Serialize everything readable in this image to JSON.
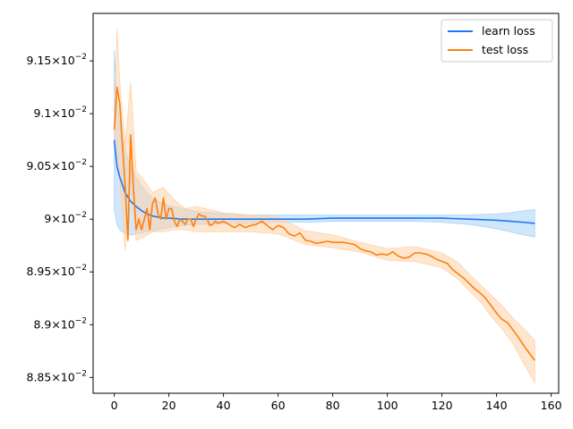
{
  "chart_data": {
    "type": "line",
    "title": "",
    "xlabel": "",
    "ylabel": "",
    "xlim": [
      -7.75,
      162.75
    ],
    "ylim": [
      0.08835,
      0.09195
    ],
    "xticks": [
      0,
      20,
      40,
      60,
      80,
      100,
      120,
      140,
      160
    ],
    "xtick_labels": [
      "0",
      "20",
      "40",
      "60",
      "80",
      "100",
      "120",
      "140",
      "160"
    ],
    "yticks": [
      0.0885,
      0.089,
      0.0895,
      0.09,
      0.0905,
      0.091,
      0.0915
    ],
    "ytick_labels": [
      {
        "mantissa": "8.85",
        "times": "×",
        "base": "10",
        "exp": "−2"
      },
      {
        "mantissa": "8.9",
        "times": "×",
        "base": "10",
        "exp": "−2"
      },
      {
        "mantissa": "8.95",
        "times": "×",
        "base": "10",
        "exp": "−2"
      },
      {
        "mantissa": "9",
        "times": "×",
        "base": "10",
        "exp": "−2"
      },
      {
        "mantissa": "9.05",
        "times": "×",
        "base": "10",
        "exp": "−2"
      },
      {
        "mantissa": "9.1",
        "times": "×",
        "base": "10",
        "exp": "−2"
      },
      {
        "mantissa": "9.15",
        "times": "×",
        "base": "10",
        "exp": "−2"
      }
    ],
    "grid": false,
    "legend_position": "top-right",
    "series": [
      {
        "name": "learn loss",
        "color": "#1f77f0",
        "band_color": "#a9d2f7",
        "x": [
          0,
          1,
          2,
          4,
          6,
          8,
          10,
          12,
          14,
          16,
          18,
          20,
          25,
          30,
          40,
          50,
          60,
          70,
          80,
          90,
          100,
          110,
          120,
          130,
          140,
          145,
          150,
          154
        ],
        "y": [
          0.09075,
          0.0905,
          0.0904,
          0.09025,
          0.09017,
          0.09012,
          0.09008,
          0.09005,
          0.09003,
          0.09002,
          0.09001,
          0.09001,
          0.09,
          0.09,
          0.09,
          0.09,
          0.09,
          0.09,
          0.09001,
          0.09001,
          0.09001,
          0.09001,
          0.09001,
          0.09,
          0.08999,
          0.08998,
          0.08997,
          0.08996
        ],
        "lower": [
          0.0901,
          0.08995,
          0.0899,
          0.08986,
          0.08985,
          0.08986,
          0.08987,
          0.08988,
          0.08989,
          0.0899,
          0.08991,
          0.08992,
          0.08994,
          0.08995,
          0.08996,
          0.08996,
          0.08997,
          0.08997,
          0.08998,
          0.08998,
          0.08998,
          0.08998,
          0.08997,
          0.08995,
          0.08991,
          0.08988,
          0.08985,
          0.08983
        ],
        "upper": [
          0.0916,
          0.0911,
          0.0909,
          0.09065,
          0.0905,
          0.0904,
          0.09032,
          0.09025,
          0.0902,
          0.09017,
          0.09015,
          0.09013,
          0.0901,
          0.09007,
          0.09005,
          0.09004,
          0.09004,
          0.09004,
          0.09004,
          0.09004,
          0.09004,
          0.09004,
          0.09004,
          0.09004,
          0.09005,
          0.09006,
          0.09008,
          0.09009
        ]
      },
      {
        "name": "test loss",
        "color": "#ff7f0e",
        "band_color": "#ffd2a8",
        "x": [
          0,
          1,
          2,
          3,
          4,
          5,
          6,
          7,
          8,
          9,
          10,
          11,
          12,
          13,
          14,
          15,
          16,
          17,
          18,
          19,
          20,
          21,
          22,
          23,
          24,
          25,
          26,
          27,
          28,
          29,
          30,
          31,
          32,
          33,
          34,
          35,
          36,
          37,
          38,
          40,
          42,
          44,
          46,
          48,
          50,
          52,
          54,
          56,
          58,
          60,
          62,
          64,
          66,
          68,
          70,
          72,
          74,
          76,
          78,
          80,
          82,
          84,
          86,
          88,
          90,
          92,
          94,
          96,
          98,
          100,
          102,
          104,
          106,
          108,
          110,
          112,
          114,
          116,
          118,
          120,
          122,
          124,
          126,
          128,
          130,
          132,
          134,
          136,
          138,
          140,
          142,
          144,
          146,
          148,
          150,
          152,
          154
        ],
        "y": [
          0.09085,
          0.09125,
          0.0911,
          0.0907,
          0.0903,
          0.0898,
          0.0908,
          0.0903,
          0.0899,
          0.09,
          0.0899,
          0.09,
          0.0901,
          0.0899,
          0.09015,
          0.0902,
          0.09005,
          0.09,
          0.0902,
          0.09,
          0.0901,
          0.0901,
          0.08998,
          0.08993,
          0.09,
          0.08998,
          0.08995,
          0.09,
          0.09,
          0.08993,
          0.09,
          0.09005,
          0.09003,
          0.09003,
          0.09,
          0.08994,
          0.08995,
          0.08998,
          0.08996,
          0.08998,
          0.08995,
          0.08992,
          0.08995,
          0.08992,
          0.08994,
          0.08995,
          0.08998,
          0.08994,
          0.0899,
          0.08994,
          0.08992,
          0.08986,
          0.08984,
          0.08987,
          0.0898,
          0.08979,
          0.08977,
          0.08978,
          0.08979,
          0.08978,
          0.08978,
          0.08978,
          0.08977,
          0.08976,
          0.08972,
          0.0897,
          0.08969,
          0.08966,
          0.08967,
          0.08966,
          0.08969,
          0.08965,
          0.08963,
          0.08964,
          0.08968,
          0.08968,
          0.08967,
          0.08965,
          0.08962,
          0.0896,
          0.08958,
          0.08952,
          0.08948,
          0.08944,
          0.08939,
          0.08934,
          0.0893,
          0.08925,
          0.08918,
          0.08911,
          0.08905,
          0.08902,
          0.08895,
          0.08888,
          0.0888,
          0.08873,
          0.08866
        ],
        "band_x": [
          0,
          1,
          2,
          4,
          6,
          8,
          10,
          14,
          18,
          22,
          26,
          30,
          40,
          50,
          60,
          70,
          80,
          90,
          100,
          110,
          120,
          126,
          130,
          134,
          138,
          142,
          146,
          150,
          154
        ],
        "band_lower": [
          0.0908,
          0.0907,
          0.0904,
          0.0897,
          0.0904,
          0.0898,
          0.08982,
          0.08988,
          0.08988,
          0.0899,
          0.0899,
          0.08988,
          0.08988,
          0.08988,
          0.08986,
          0.08976,
          0.08973,
          0.08969,
          0.08961,
          0.0896,
          0.08954,
          0.08943,
          0.08932,
          0.08922,
          0.08908,
          0.08896,
          0.08882,
          0.08863,
          0.08845
        ],
        "band_upper": [
          0.0909,
          0.0918,
          0.0913,
          0.0907,
          0.0913,
          0.09045,
          0.0904,
          0.09025,
          0.0903,
          0.09018,
          0.0901,
          0.09012,
          0.09006,
          0.09004,
          0.09002,
          0.08989,
          0.08985,
          0.08978,
          0.08972,
          0.08974,
          0.08968,
          0.08959,
          0.08948,
          0.08938,
          0.08928,
          0.08918,
          0.08906,
          0.08896,
          0.08885
        ]
      }
    ]
  }
}
